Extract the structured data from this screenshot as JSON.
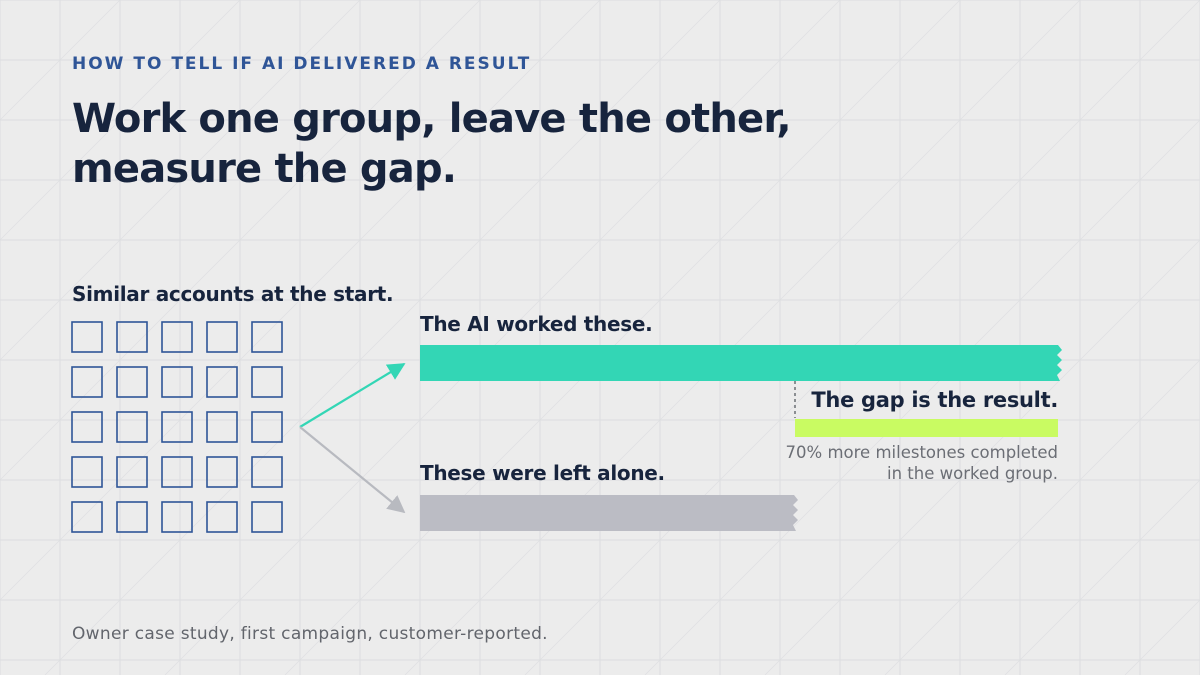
{
  "eyebrow": "HOW TO TELL IF AI DELIVERED A RESULT",
  "headline": {
    "line1": "Work one group, leave the other,",
    "line2": "measure the gap."
  },
  "accounts": {
    "label": "Similar accounts at the start.",
    "rows": 5,
    "cols": 5
  },
  "worked_group": {
    "label": "The AI worked these.",
    "color": "#33d6b5"
  },
  "left_alone_group": {
    "label": "These were left alone.",
    "color": "#bbbcc4"
  },
  "gap": {
    "label": "The gap is the result.",
    "color": "#c9fb62",
    "note_line1": "70% more milestones completed",
    "note_line2": "in the worked group."
  },
  "footer": "Owner case study, first campaign, customer-reported.",
  "colors": {
    "background": "#ececec",
    "grid_line": "#dcdde0",
    "box_outline": "#2f5597",
    "arrow_to_worked": "#33d6b5",
    "arrow_to_left_alone": "#b8bac0",
    "heading": "#17243d",
    "eyebrow": "#2f5597"
  }
}
